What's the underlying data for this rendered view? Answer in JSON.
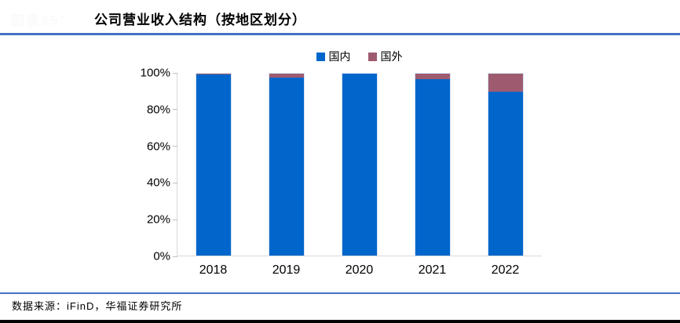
{
  "header": {
    "figure_label": "图表35：",
    "title": "公司营业收入结构（按地区划分）"
  },
  "legend": {
    "items": [
      {
        "label": "国内",
        "color": "#0066CB"
      },
      {
        "label": "国外",
        "color": "#9E5B6F"
      }
    ]
  },
  "chart_data": {
    "type": "bar",
    "stacked": true,
    "title": "公司营业收入结构（按地区划分）",
    "categories": [
      "2018",
      "2019",
      "2020",
      "2021",
      "2022"
    ],
    "series": [
      {
        "name": "国内",
        "color": "#0066CB",
        "values": [
          99.5,
          98,
          100,
          97,
          90
        ]
      },
      {
        "name": "国外",
        "color": "#9E5B6F",
        "values": [
          0.5,
          2,
          0,
          3,
          10
        ]
      }
    ],
    "xlabel": "",
    "ylabel": "",
    "ylim": [
      0,
      100
    ],
    "ytick_step": 20,
    "ytick_labels": [
      "0%",
      "20%",
      "40%",
      "60%",
      "80%",
      "100%"
    ],
    "legend_position": "top-center",
    "grid": false
  },
  "footer": {
    "source": "数据来源：iFinD，华福证券研究所"
  },
  "colors": {
    "accent_rule": "#4472C4",
    "axis": "#D9D9D9",
    "domestic": "#0066CB",
    "foreign": "#9E5B6F"
  }
}
